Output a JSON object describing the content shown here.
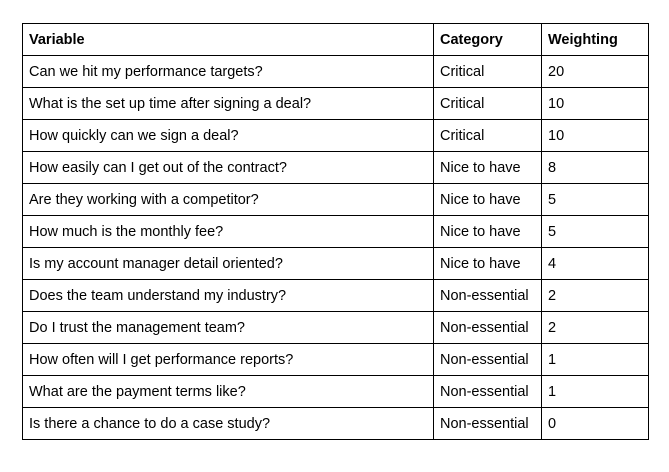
{
  "table": {
    "headers": [
      "Variable",
      "Category",
      "Weighting"
    ],
    "rows": [
      {
        "variable": "Can we hit my performance targets?",
        "category": "Critical",
        "weighting": "20"
      },
      {
        "variable": "What is the set up time after signing a deal?",
        "category": "Critical",
        "weighting": "10"
      },
      {
        "variable": "How quickly can we sign a deal?",
        "category": "Critical",
        "weighting": "10"
      },
      {
        "variable": "How easily can I get out of the contract?",
        "category": "Nice to have",
        "weighting": "8"
      },
      {
        "variable": "Are they working with a competitor?",
        "category": "Nice to have",
        "weighting": "5"
      },
      {
        "variable": "How much is the monthly fee?",
        "category": "Nice to have",
        "weighting": "5"
      },
      {
        "variable": "Is my account manager detail oriented?",
        "category": "Nice to have",
        "weighting": "4"
      },
      {
        "variable": "Does the team understand my industry?",
        "category": "Non-essential",
        "weighting": "2"
      },
      {
        "variable": "Do I trust the management team?",
        "category": "Non-essential",
        "weighting": "2"
      },
      {
        "variable": "How often will I get performance reports?",
        "category": "Non-essential",
        "weighting": "1"
      },
      {
        "variable": "What are the payment terms like?",
        "category": "Non-essential",
        "weighting": "1"
      },
      {
        "variable": "Is there a chance to do a case study?",
        "category": "Non-essential",
        "weighting": "0"
      }
    ]
  }
}
